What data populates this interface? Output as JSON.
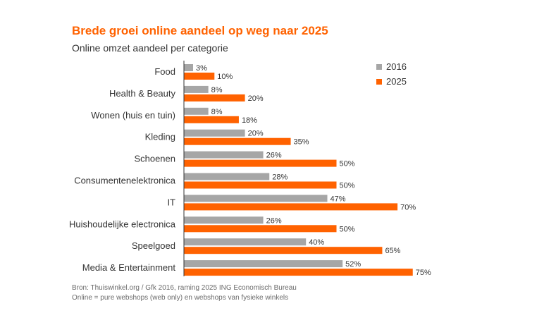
{
  "header": {
    "title": "Brede groei online aandeel op weg naar 2025",
    "subtitle": "Online omzet aandeel per categorie"
  },
  "footer": {
    "source_line1": "Bron: Thuiswinkel.org / Gfk 2016, raming 2025 ING Economisch Bureau",
    "source_line2": "Online = pure webshops (web only) en webshops van fysieke winkels"
  },
  "colors": {
    "series_2016": "#a6a6a6",
    "series_2025": "#ff6200",
    "axis": "#333333",
    "label_text": "#333333"
  },
  "chart_data": {
    "type": "bar",
    "orientation": "horizontal",
    "categories": [
      "Food",
      "Health & Beauty",
      "Wonen (huis en tuin)",
      "Kleding",
      "Schoenen",
      "Consumentenelektronica",
      "IT",
      "Huishoudelijke electronica",
      "Speelgoed",
      "Media & Entertainment"
    ],
    "series": [
      {
        "name": "2016",
        "values": [
          3,
          8,
          8,
          20,
          26,
          28,
          47,
          26,
          40,
          52
        ]
      },
      {
        "name": "2025",
        "values": [
          10,
          20,
          18,
          35,
          50,
          50,
          70,
          50,
          65,
          75
        ]
      }
    ],
    "data_labels": [
      [
        "3%",
        "8%",
        "8%",
        "20%",
        "26%",
        "28%",
        "47%",
        "26%",
        "40%",
        "52%"
      ],
      [
        "10%",
        "20%",
        "18%",
        "35%",
        "50%",
        "50%",
        "70%",
        "50%",
        "65%",
        "75%"
      ]
    ],
    "xlim": [
      0,
      100
    ],
    "grid": false,
    "legend_position": "top-right"
  }
}
